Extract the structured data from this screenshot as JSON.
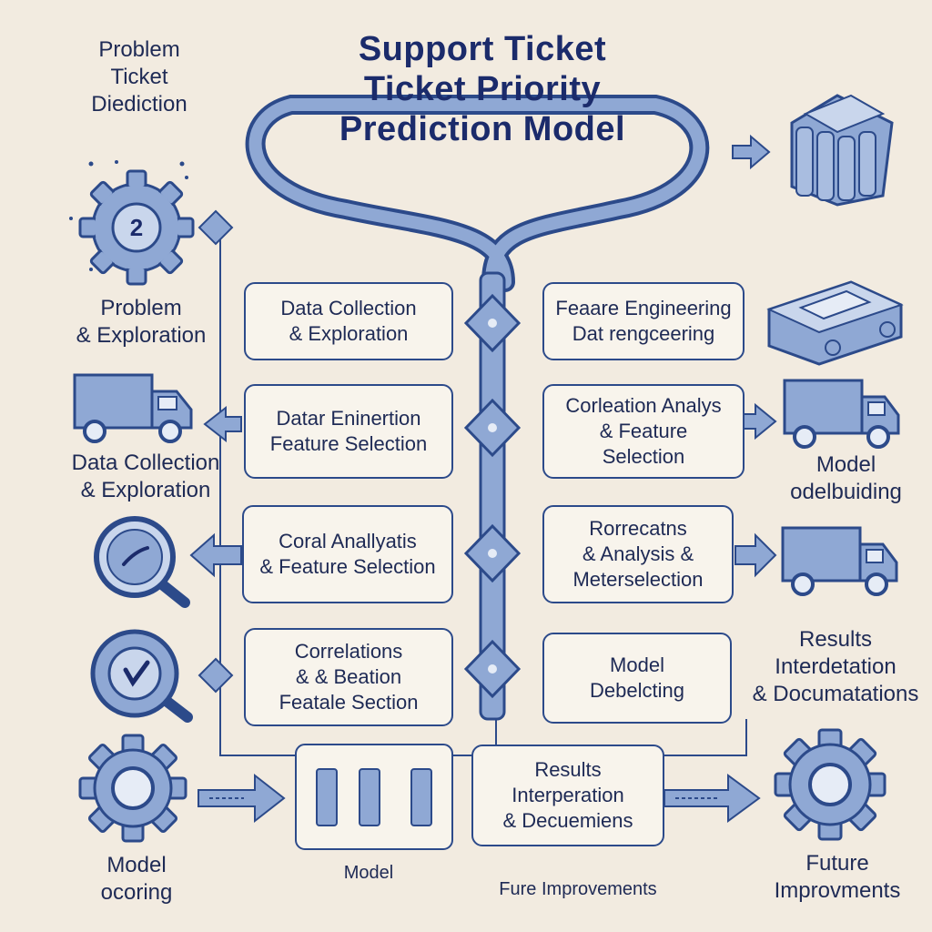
{
  "title": [
    "Support Ticket",
    "Ticket Priority",
    "Prediction Model"
  ],
  "left_labels": {
    "top": [
      "Problem",
      "Ticket",
      "Diediction"
    ],
    "problem": [
      "Problem",
      "& Exploration"
    ],
    "data": [
      "Data Collection",
      "& Exploration"
    ],
    "model": [
      "Model",
      "ocoring"
    ]
  },
  "center_left_boxes": [
    [
      "Data Collection",
      "& Exploration"
    ],
    [
      "Datar Eninertion",
      "Feature Selection"
    ],
    [
      "Coral Anallyatis",
      "& Feature Selection"
    ],
    [
      "Correlations",
      "& & Beation",
      "Featale Section"
    ]
  ],
  "center_right_boxes": [
    [
      "Feaare Engineering",
      "Dat rengceering"
    ],
    [
      "Corleation Analys",
      "& Feature",
      "Selection"
    ],
    [
      "Rorrecatns",
      "& Analysis &",
      "Meterselection"
    ],
    [
      "Model",
      "Debelcting"
    ]
  ],
  "right_labels": {
    "model_building": [
      "Model",
      "odelbuiding"
    ],
    "results": [
      "Results",
      "Interdetation",
      "& Documatations"
    ],
    "future": [
      "Future",
      "Improvments"
    ]
  },
  "bottom": {
    "results_box": [
      "Results",
      "Interperation",
      "& Decuemiens"
    ],
    "model_label": "Model",
    "future_label": "Fure Improvements"
  },
  "colors": {
    "stroke": "#2c4a8a",
    "fill": "#8fa8d4",
    "dark": "#1b2b6b",
    "background": "#f2ebe0"
  },
  "icons": [
    "gear-number-icon",
    "storage-icon",
    "printer-icon",
    "truck-icon",
    "magnifier-icon",
    "gear-icon",
    "bar-chart-icon"
  ]
}
